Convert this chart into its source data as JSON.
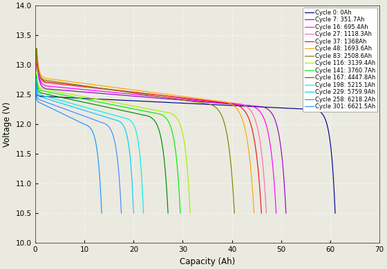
{
  "cycles": [
    {
      "label": "Cycle 0: 0Ah",
      "color": "#00008B",
      "cap_max": 61.0,
      "v_peak": 12.5,
      "v_flat_start": 12.47,
      "v_flat_end": 12.25,
      "knee_start": 57.0,
      "v_cutoff": 10.5
    },
    {
      "label": "Cycle 7: 351.7Ah",
      "color": "#9400D3",
      "cap_max": 51.0,
      "v_peak": 13.1,
      "v_flat_start": 12.6,
      "v_flat_end": 12.3,
      "knee_start": 46.0,
      "v_cutoff": 10.5
    },
    {
      "label": "Cycle 16: 695.4Ah",
      "color": "#FF00FF",
      "cap_max": 49.0,
      "v_peak": 13.15,
      "v_flat_start": 12.65,
      "v_flat_end": 12.32,
      "knee_start": 43.5,
      "v_cutoff": 10.5
    },
    {
      "label": "Cycle 27: 1118.3Ah",
      "color": "#FF69B4",
      "cap_max": 47.0,
      "v_peak": 13.2,
      "v_flat_start": 12.7,
      "v_flat_end": 12.35,
      "knee_start": 41.5,
      "v_cutoff": 10.5
    },
    {
      "label": "Cycle 37: 1368Ah",
      "color": "#EE1111",
      "cap_max": 46.0,
      "v_peak": 13.25,
      "v_flat_start": 12.72,
      "v_flat_end": 12.35,
      "knee_start": 40.0,
      "v_cutoff": 10.5
    },
    {
      "label": "Cycle 48: 1693.6Ah",
      "color": "#FFA500",
      "cap_max": 44.5,
      "v_peak": 13.3,
      "v_flat_start": 12.78,
      "v_flat_end": 12.38,
      "knee_start": 38.5,
      "v_cutoff": 10.5
    },
    {
      "label": "Cycle 83: 2508.6Ah",
      "color": "#808000",
      "cap_max": 40.5,
      "v_peak": 13.3,
      "v_flat_start": 12.75,
      "v_flat_end": 12.35,
      "knee_start": 35.0,
      "v_cutoff": 10.5
    },
    {
      "label": "Cycle 116: 3139.4Ah",
      "color": "#AAEE00",
      "cap_max": 31.5,
      "v_peak": 12.9,
      "v_flat_start": 12.6,
      "v_flat_end": 12.2,
      "knee_start": 27.0,
      "v_cutoff": 10.5
    },
    {
      "label": "Cycle 141: 3760.7Ah",
      "color": "#00EE00",
      "cap_max": 29.5,
      "v_peak": 12.85,
      "v_flat_start": 12.57,
      "v_flat_end": 12.18,
      "knee_start": 25.0,
      "v_cutoff": 10.5
    },
    {
      "label": "Cycle 167: 4447.8Ah",
      "color": "#008800",
      "cap_max": 27.0,
      "v_peak": 12.8,
      "v_flat_start": 12.53,
      "v_flat_end": 12.15,
      "knee_start": 22.5,
      "v_cutoff": 10.5
    },
    {
      "label": "Cycle 198: 5215.1Ah",
      "color": "#00EEEE",
      "cap_max": 22.0,
      "v_peak": 12.78,
      "v_flat_start": 12.5,
      "v_flat_end": 12.1,
      "knee_start": 18.5,
      "v_cutoff": 10.5
    },
    {
      "label": "Cycle 229: 5759.9Ah",
      "color": "#00CCFF",
      "cap_max": 20.0,
      "v_peak": 12.72,
      "v_flat_start": 12.47,
      "v_flat_end": 12.07,
      "knee_start": 16.5,
      "v_cutoff": 10.5
    },
    {
      "label": "Cycle 258: 6218.2Ah",
      "color": "#4488FF",
      "cap_max": 17.5,
      "v_peak": 12.68,
      "v_flat_start": 12.42,
      "v_flat_end": 12.03,
      "knee_start": 13.5,
      "v_cutoff": 10.5
    },
    {
      "label": "Cycle 301: 6621.5Ah",
      "color": "#1E90FF",
      "cap_max": 13.5,
      "v_peak": 12.62,
      "v_flat_start": 12.38,
      "v_flat_end": 12.0,
      "knee_start": 10.0,
      "v_cutoff": 10.5
    }
  ],
  "xlim": [
    0,
    70
  ],
  "ylim": [
    10,
    14
  ],
  "xlabel": "Capacity (Ah)",
  "ylabel": "Voltage (V)",
  "xticks": [
    0,
    10,
    20,
    30,
    40,
    50,
    60,
    70
  ],
  "yticks": [
    10,
    10.5,
    11,
    11.5,
    12,
    12.5,
    13,
    13.5,
    14
  ],
  "bg_color": "#eaeae0",
  "grid_color": "#ffffff",
  "v_global_cutoff": 10.5
}
